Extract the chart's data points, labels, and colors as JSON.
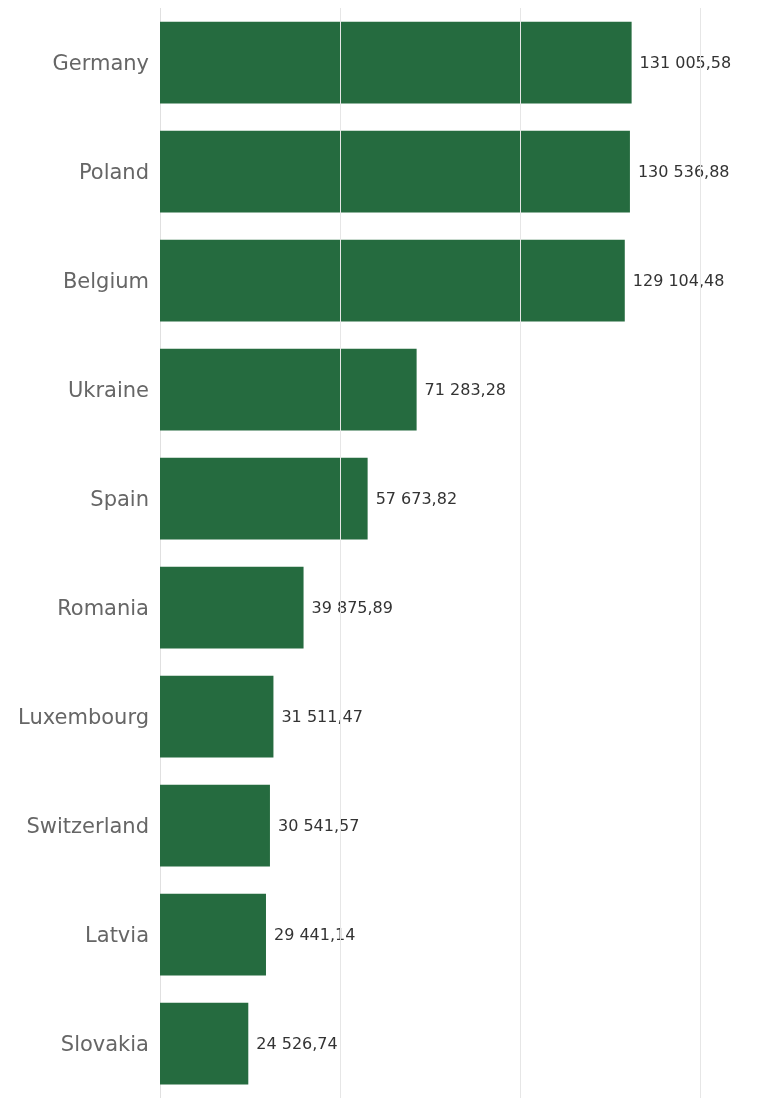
{
  "chart_data": {
    "type": "bar",
    "orientation": "horizontal",
    "categories": [
      "Germany",
      "Poland",
      "Belgium",
      "Ukraine",
      "Spain",
      "Romania",
      "Luxembourg",
      "Switzerland",
      "Latvia",
      "Slovakia"
    ],
    "values": [
      131005.58,
      130536.88,
      129104.48,
      71283.28,
      57673.82,
      39875.89,
      31511.47,
      30541.57,
      29441.14,
      24526.74
    ],
    "value_labels": [
      "131 005,58",
      "130 536,88",
      "129 104,48",
      "71 283,28",
      "57 673,82",
      "39 875,89",
      "31 511,47",
      "30 541,57",
      "29 441,14",
      "24 526,74"
    ],
    "color": "#256b3f",
    "ref_lines": [
      {
        "axis": "x",
        "value": 50000,
        "color": "#e6e6e6"
      },
      {
        "axis": "x",
        "value": 100000,
        "color": "#e6e6e6"
      },
      {
        "axis": "x",
        "value": 150000,
        "color": "#e6e6e6"
      }
    ],
    "tick_labels": "y"
  }
}
